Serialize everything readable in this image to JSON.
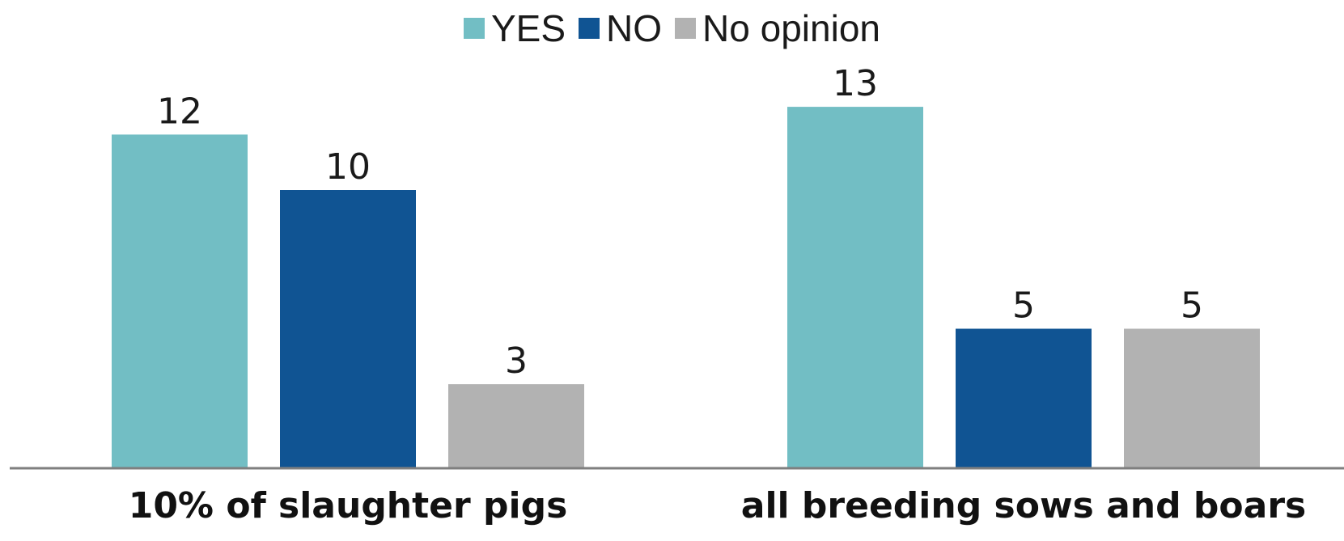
{
  "chart_data": {
    "type": "bar",
    "categories": [
      "10% of slaughter pigs",
      "all breeding sows and boars"
    ],
    "series": [
      {
        "name": "YES",
        "values": [
          12,
          13
        ],
        "color": "#72bec4"
      },
      {
        "name": "NO",
        "values": [
          10,
          5
        ],
        "color": "#105493"
      },
      {
        "name": "No opinion",
        "values": [
          3,
          5
        ],
        "color": "#b2b2b2"
      }
    ],
    "ylim": [
      0,
      15
    ],
    "grid": false,
    "legend_position": "top-center",
    "axis_color": "#7f7f7f"
  }
}
